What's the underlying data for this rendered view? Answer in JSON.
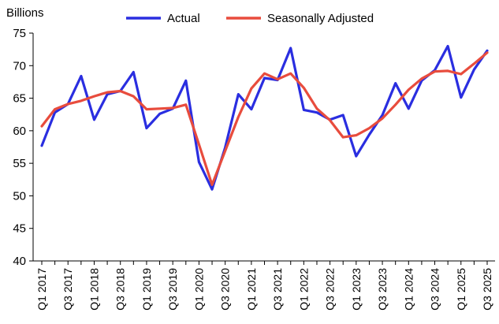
{
  "chart_data": {
    "type": "line",
    "title": "",
    "xlabel": "",
    "ylabel": "Billions",
    "ylim": [
      40,
      75
    ],
    "yticks": [
      40,
      45,
      50,
      55,
      60,
      65,
      70,
      75
    ],
    "grid": false,
    "legend_position": "top",
    "categories": [
      "Q1 2017",
      "Q2 2017",
      "Q3 2017",
      "Q4 2017",
      "Q1 2018",
      "Q2 2018",
      "Q3 2018",
      "Q4 2018",
      "Q1 2019",
      "Q2 2019",
      "Q3 2019",
      "Q4 2019",
      "Q1 2020",
      "Q2 2020",
      "Q3 2020",
      "Q4 2020",
      "Q1 2021",
      "Q2 2021",
      "Q3 2021",
      "Q4 2021",
      "Q1 2022",
      "Q2 2022",
      "Q3 2022",
      "Q4 2022",
      "Q1 2023",
      "Q2 2023",
      "Q3 2023",
      "Q4 2023",
      "Q1 2024",
      "Q2 2024",
      "Q3 2024",
      "Q4 2024",
      "Q1 2025",
      "Q2 2025",
      "Q3 2025"
    ],
    "tick_labels": [
      "Q1 2017",
      "Q3 2017",
      "Q1 2018",
      "Q3 2018",
      "Q1 2019",
      "Q3 2019",
      "Q1 2020",
      "Q3 2020",
      "Q1 2021",
      "Q3 2021",
      "Q1 2022",
      "Q3 2022",
      "Q1 2023",
      "Q3 2023",
      "Q1 2024",
      "Q3 2024",
      "Q1 2025",
      "Q3 2025"
    ],
    "series": [
      {
        "name": "Actual",
        "color": "#2a2ee0",
        "values": [
          57.7,
          62.8,
          64.1,
          68.4,
          61.7,
          65.6,
          66.1,
          69.0,
          60.4,
          62.6,
          63.4,
          67.7,
          55.2,
          51.0,
          57.4,
          65.6,
          63.3,
          68.1,
          67.8,
          72.7,
          63.2,
          62.8,
          61.7,
          62.4,
          56.1,
          59.4,
          62.4,
          67.3,
          63.4,
          67.7,
          69.3,
          73.0,
          65.1,
          69.4,
          72.3
        ]
      },
      {
        "name": "Seasonally Adjusted",
        "color": "#e84c3d",
        "values": [
          60.7,
          63.3,
          64.1,
          64.6,
          65.3,
          65.9,
          66.1,
          65.3,
          63.3,
          63.4,
          63.5,
          64.0,
          57.9,
          51.7,
          56.9,
          62.1,
          66.5,
          68.8,
          67.9,
          68.8,
          66.6,
          63.4,
          61.6,
          59.0,
          59.3,
          60.4,
          61.9,
          64.0,
          66.3,
          68.0,
          69.1,
          69.2,
          68.7,
          70.3,
          72.0
        ]
      }
    ]
  }
}
